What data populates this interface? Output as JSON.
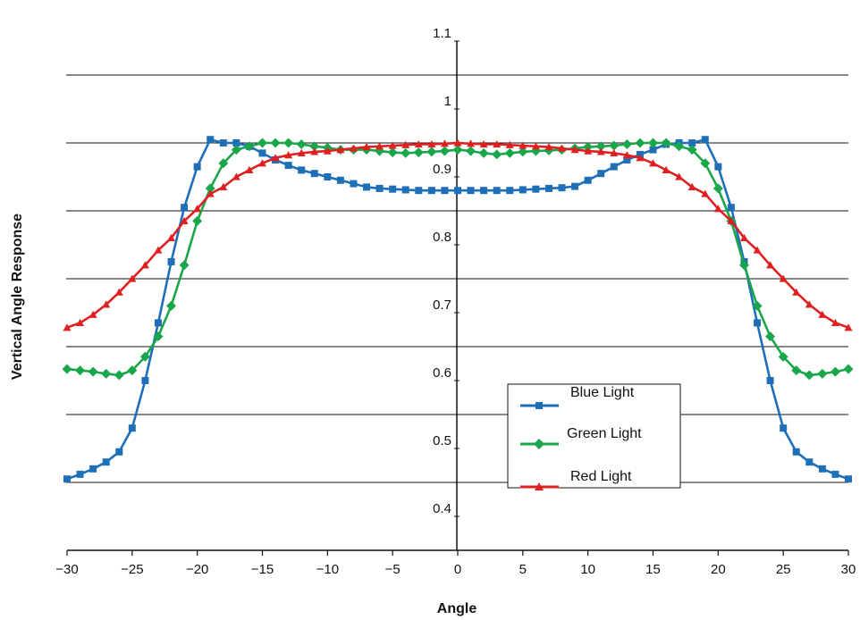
{
  "chart_data": {
    "type": "line",
    "title": "",
    "xlabel": "Angle",
    "ylabel": "Vertical Angle Response",
    "xlim": [
      -30,
      30
    ],
    "ylim": [
      0.35,
      1.1
    ],
    "x_ticks": [
      -30,
      -25,
      -20,
      -15,
      -10,
      -5,
      0,
      5,
      10,
      15,
      20,
      25,
      30
    ],
    "x_tick_labels": [
      "−30",
      "−25",
      "−20",
      "−15",
      "−10",
      "−5",
      "0",
      "5",
      "10",
      "15",
      "20",
      "25",
      "30"
    ],
    "y_tick_labels": [
      {
        "value": 1.1,
        "label": "1.1"
      },
      {
        "value": 1.0,
        "label": "1"
      },
      {
        "value": 0.9,
        "label": "0.9"
      },
      {
        "value": 0.8,
        "label": "0.8"
      },
      {
        "value": 0.7,
        "label": "0.7"
      },
      {
        "value": 0.6,
        "label": "0.6"
      },
      {
        "value": 0.5,
        "label": "0.5"
      },
      {
        "value": 0.4,
        "label": "0.4"
      }
    ],
    "gridlines_y": [
      0.45,
      0.55,
      0.65,
      0.75,
      0.85,
      0.95,
      1.05
    ],
    "grid": "horizontal",
    "legend_position": "lower-center-right",
    "x": [
      -30,
      -29,
      -28,
      -27,
      -26,
      -25,
      -24,
      -23,
      -22,
      -21,
      -20,
      -19,
      -18,
      -17,
      -16,
      -15,
      -14,
      -13,
      -12,
      -11,
      -10,
      -9,
      -8,
      -7,
      -6,
      -5,
      -4,
      -3,
      -2,
      -1,
      0,
      1,
      2,
      3,
      4,
      5,
      6,
      7,
      8,
      9,
      10,
      11,
      12,
      13,
      14,
      15,
      16,
      17,
      18,
      19,
      20,
      21,
      22,
      23,
      24,
      25,
      26,
      27,
      28,
      29,
      30
    ],
    "series": [
      {
        "name": "Blue Light",
        "color": "#1f6fb8",
        "marker": "square",
        "values": [
          0.455,
          0.462,
          0.47,
          0.48,
          0.495,
          0.53,
          0.6,
          0.685,
          0.775,
          0.855,
          0.915,
          0.955,
          0.95,
          0.95,
          0.945,
          0.935,
          0.925,
          0.917,
          0.91,
          0.905,
          0.9,
          0.895,
          0.89,
          0.885,
          0.883,
          0.882,
          0.881,
          0.88,
          0.88,
          0.88,
          0.88,
          0.88,
          0.88,
          0.88,
          0.88,
          0.881,
          0.882,
          0.883,
          0.884,
          0.886,
          0.895,
          0.905,
          0.915,
          0.925,
          0.933,
          0.94,
          0.948,
          0.95,
          0.95,
          0.955,
          0.915,
          0.855,
          0.775,
          0.685,
          0.6,
          0.53,
          0.495,
          0.48,
          0.47,
          0.462,
          0.455
        ]
      },
      {
        "name": "Green Light",
        "color": "#1aa64a",
        "marker": "diamond",
        "values": [
          0.617,
          0.615,
          0.613,
          0.61,
          0.608,
          0.615,
          0.635,
          0.665,
          0.71,
          0.77,
          0.835,
          0.883,
          0.92,
          0.94,
          0.945,
          0.95,
          0.95,
          0.95,
          0.948,
          0.945,
          0.943,
          0.94,
          0.94,
          0.94,
          0.938,
          0.936,
          0.935,
          0.936,
          0.937,
          0.938,
          0.94,
          0.938,
          0.935,
          0.933,
          0.935,
          0.937,
          0.938,
          0.939,
          0.94,
          0.942,
          0.944,
          0.945,
          0.946,
          0.948,
          0.95,
          0.95,
          0.95,
          0.945,
          0.94,
          0.92,
          0.883,
          0.835,
          0.77,
          0.71,
          0.665,
          0.635,
          0.615,
          0.608,
          0.61,
          0.613,
          0.617
        ]
      },
      {
        "name": "Red Light",
        "color": "#e02020",
        "marker": "triangle",
        "values": [
          0.678,
          0.685,
          0.697,
          0.712,
          0.73,
          0.75,
          0.77,
          0.792,
          0.81,
          0.835,
          0.853,
          0.875,
          0.885,
          0.9,
          0.91,
          0.92,
          0.928,
          0.932,
          0.935,
          0.937,
          0.938,
          0.94,
          0.942,
          0.944,
          0.945,
          0.946,
          0.947,
          0.948,
          0.948,
          0.949,
          0.95,
          0.949,
          0.948,
          0.948,
          0.947,
          0.946,
          0.945,
          0.944,
          0.942,
          0.94,
          0.938,
          0.937,
          0.935,
          0.932,
          0.928,
          0.92,
          0.91,
          0.9,
          0.885,
          0.875,
          0.853,
          0.835,
          0.81,
          0.792,
          0.77,
          0.75,
          0.73,
          0.712,
          0.697,
          0.685,
          0.678
        ]
      }
    ]
  }
}
